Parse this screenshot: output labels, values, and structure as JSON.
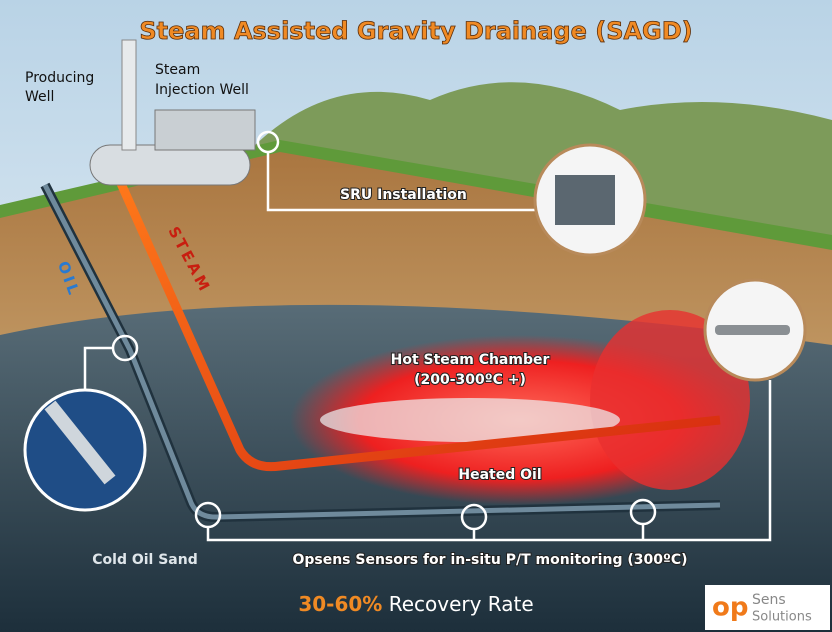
{
  "header": {
    "title": "Steam Assisted Gravity Drainage (SAGD)"
  },
  "labels": {
    "producing_well": [
      "Producing",
      "Well"
    ],
    "injection_well": [
      "Steam",
      "Injection Well"
    ],
    "sru": "SRU Installation",
    "steam": "STEAM",
    "oil": "OIL",
    "chamber": "Hot Steam Chamber",
    "chamber_temp": "(200-300ºC +)",
    "heated_oil": "Heated Oil",
    "cold_oil": "Cold Oil Sand",
    "sensors": "Opsens Sensors for in-situ P/T monitoring (300ºC)"
  },
  "footer": {
    "rate": "30-60%",
    "rate_text": "Recovery Rate"
  },
  "logo": {
    "mark": "op",
    "name": "Sens",
    "sub": "Solutions"
  }
}
